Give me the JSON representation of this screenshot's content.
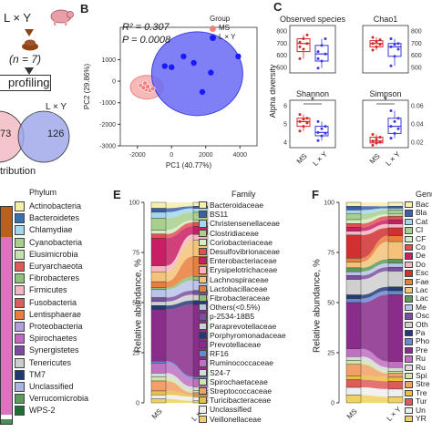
{
  "panelA": {
    "group_label": "L × Y",
    "n_label": "(n = 7)",
    "profiling_label": "profiling",
    "venn_left_value": "73",
    "venn_right_value": "126",
    "L_Y_label": "L × Y",
    "footer_label": "tribution",
    "pig_color": "#e8a0a8",
    "venn_color": "#9aa4e8"
  },
  "panelB": {
    "letter": "B",
    "r2_label": "R² = 0.307",
    "p_label": "P = 0.0008",
    "legend_title": "Group",
    "legend_items": [
      {
        "label": "MS",
        "color": "#f08080"
      },
      {
        "label": "L × Y",
        "color": "#1a1aff"
      }
    ]
  },
  "panelC": {
    "letter": "C",
    "ylabel": "Alpha diversity",
    "xcats": [
      "MS",
      "L × Y"
    ],
    "colors": {
      "MS": "#d62728",
      "LY": "#3b3bd8"
    },
    "subplots": [
      {
        "title": "Observed species",
        "yticks": [
          "800",
          "700",
          "600",
          "500"
        ],
        "sig": ""
      },
      {
        "title": "Chao1",
        "yticks": [
          "800",
          "700",
          "600",
          "500"
        ],
        "sig": ""
      },
      {
        "title": "Shannon",
        "yticks": [
          "6",
          "5",
          "4"
        ],
        "sig": "*"
      },
      {
        "title": "Simpson",
        "yticks": [
          "0.06",
          "0.04",
          "0.02"
        ],
        "sig": "*"
      }
    ]
  },
  "panelD": {
    "legend_title": "Phylum",
    "legend_items": [
      {
        "label": "Actinobacteria",
        "color": "#f5f0a8"
      },
      {
        "label": "Bacteroidetes",
        "color": "#3a6fb0"
      },
      {
        "label": "Chlamydiae",
        "color": "#a7d7ea"
      },
      {
        "label": "Cyanobacteria",
        "color": "#a8d08d"
      },
      {
        "label": "Elusimicrobia",
        "color": "#c6e0b4"
      },
      {
        "label": "Euryarchaeota",
        "color": "#e05a5a"
      },
      {
        "label": "Fibrobacteres",
        "color": "#8fbf7a"
      },
      {
        "label": "Firmicutes",
        "color": "#f4b6c2"
      },
      {
        "label": "Fusobacteria",
        "color": "#d95f5f"
      },
      {
        "label": "Lentisphaerae",
        "color": "#e97f3c"
      },
      {
        "label": "Proteobacteria",
        "color": "#b39ddb"
      },
      {
        "label": "Spirochaetes",
        "color": "#c266c2"
      },
      {
        "label": "Synergistetes",
        "color": "#7c4aa0"
      },
      {
        "label": "Tenericutes",
        "color": "#cccccc"
      },
      {
        "label": "TM7",
        "color": "#1e3a6e"
      },
      {
        "label": "Unclassified",
        "color": "#aab4e0"
      },
      {
        "label": "Verrucomicrobia",
        "color": "#5a9a5a"
      },
      {
        "label": "WPS-2",
        "color": "#1f6e3a"
      }
    ],
    "bar_left_stack": [
      {
        "name": "Firmicutes",
        "frac": 0.82,
        "color": "#e070c0"
      },
      {
        "name": "Bacteroidetes",
        "frac": 0.16,
        "color": "#b8601c"
      },
      {
        "name": "Others",
        "frac": 0.02,
        "color": "#4a8f5a"
      }
    ]
  },
  "panelE": {
    "letter": "E",
    "ylabel": "Relative abundance, %",
    "yticks": [
      "100",
      "75",
      "50",
      "25",
      "0"
    ],
    "xcats": [
      "MS",
      "L × Y"
    ],
    "legend_title": "Family",
    "legend_items": [
      {
        "label": "Bacteroidaceae",
        "color": "#f5efb0"
      },
      {
        "label": "BS11",
        "color": "#3a5fa8"
      },
      {
        "label": "Christensenellaceae",
        "color": "#a6d6ee"
      },
      {
        "label": "Clostridiaceae",
        "color": "#a8d08d"
      },
      {
        "label": "Coriobacteriaceae",
        "color": "#d4edc4"
      },
      {
        "label": "Desulfovibrionaceae",
        "color": "#e05050"
      },
      {
        "label": "Enterobacteriaceae",
        "color": "#c91e63"
      },
      {
        "label": "Erysipelotrichaceae",
        "color": "#f4b6c2"
      },
      {
        "label": "Lachnospiraceae",
        "color": "#f5c27a"
      },
      {
        "label": "Lactobacillaceae",
        "color": "#e97f3c"
      },
      {
        "label": "Fibrobacteraceae",
        "color": "#8fbf7a"
      },
      {
        "label": "Others(<0.5%)",
        "color": "#b8c4e8"
      },
      {
        "label": "p-2534-18B5",
        "color": "#7a4fa0"
      },
      {
        "label": "Paraprevotellaceae",
        "color": "#cfcfcf"
      },
      {
        "label": "Porphyromonadaceae",
        "color": "#243a78"
      },
      {
        "label": "Prevotellaceae",
        "color": "#8a2c8a"
      },
      {
        "label": "RF16",
        "color": "#6a88d0"
      },
      {
        "label": "Ruminococcaceae",
        "color": "#c070c0"
      },
      {
        "label": "S24-7",
        "color": "#d8d8d8"
      },
      {
        "label": "Spirochaetaceae",
        "color": "#cfe6a6"
      },
      {
        "label": "Streptococcaceae",
        "color": "#f2a066"
      },
      {
        "label": "Turicibacteraceae",
        "color": "#e8c040"
      },
      {
        "label": "Unclassified",
        "color": "#eeeeee"
      },
      {
        "label": "Veillonellaceae",
        "color": "#f0d060"
      }
    ]
  },
  "panelF": {
    "letter": "F",
    "ylabel": "Relative abundance, %",
    "yticks": [
      "100",
      "75",
      "50",
      "25",
      "0"
    ],
    "xcats": [
      "MS",
      "L × Y"
    ],
    "legend_title": "Genu",
    "legend_items": [
      {
        "label": "Bac",
        "color": "#f5efb0"
      },
      {
        "label": "Bla",
        "color": "#3a5fa8"
      },
      {
        "label": "Cat",
        "color": "#a6d6ee"
      },
      {
        "label": "Cl",
        "color": "#a8d08d"
      },
      {
        "label": "CF",
        "color": "#d4edc4"
      },
      {
        "label": "Co",
        "color": "#e05050"
      },
      {
        "label": "De",
        "color": "#c91e63"
      },
      {
        "label": "Do",
        "color": "#f4b6c2"
      },
      {
        "label": "Esc",
        "color": "#d03030"
      },
      {
        "label": "Fae",
        "color": "#e97f3c"
      },
      {
        "label": "Lac",
        "color": "#f5c27a"
      },
      {
        "label": "Lac",
        "color": "#5a9a5a"
      },
      {
        "label": "Me",
        "color": "#b8c4e8"
      },
      {
        "label": "Osc",
        "color": "#7a4fa0"
      },
      {
        "label": "Oth",
        "color": "#cfcfcf"
      },
      {
        "label": "Pa",
        "color": "#243a78"
      },
      {
        "label": "Pho",
        "color": "#6a88d0"
      },
      {
        "label": "Pre",
        "color": "#8a2c8a"
      },
      {
        "label": "Ru",
        "color": "#c070c0"
      },
      {
        "label": "Ru",
        "color": "#d8d8d8"
      },
      {
        "label": "Spi",
        "color": "#cfe6a6"
      },
      {
        "label": "Stre",
        "color": "#f2a066"
      },
      {
        "label": "Tre",
        "color": "#e8c040"
      },
      {
        "label": "Tur",
        "color": "#e05a5a"
      },
      {
        "label": "Un",
        "color": "#eeeeee"
      },
      {
        "label": "YR",
        "color": "#f0d060"
      }
    ]
  },
  "chart_data": [
    {
      "type": "scatter",
      "panel": "B",
      "xlabel": "PC1 (40.77%)",
      "ylabel": "PC2 (29.86%)",
      "xlim": [
        -3000,
        5000
      ],
      "ylim": [
        -3000,
        2500
      ],
      "xticks": [
        -2000,
        0,
        2000,
        4000
      ],
      "yticks": [
        1000,
        0,
        -1000,
        -2000,
        -3000
      ],
      "series": [
        {
          "name": "MS",
          "color": "#f08080",
          "points": [
            [
              -1800,
              -200
            ],
            [
              -1500,
              -380
            ],
            [
              -1250,
              -420
            ],
            [
              -1550,
              -100
            ],
            [
              -1400,
              -250
            ],
            [
              -1100,
              -350
            ],
            [
              -1650,
              -300
            ]
          ]
        },
        {
          "name": "L × Y",
          "color": "#1a1aff",
          "points": [
            [
              -400,
              700
            ],
            [
              0,
              650
            ],
            [
              1300,
              850
            ],
            [
              2300,
              400
            ],
            [
              3900,
              1150
            ],
            [
              700,
              1150
            ],
            [
              1800,
              -500
            ]
          ]
        }
      ]
    },
    {
      "type": "bar",
      "panel": "E",
      "stacked": true,
      "categories": [
        "MS",
        "L × Y"
      ],
      "ylim": [
        0,
        100
      ],
      "series": [
        {
          "name": "Bacteroidaceae",
          "values": [
            3,
            2
          ]
        },
        {
          "name": "BS11",
          "values": [
            2,
            1
          ]
        },
        {
          "name": "Christensenellaceae",
          "values": [
            3,
            2
          ]
        },
        {
          "name": "Clostridiaceae",
          "values": [
            6,
            4
          ]
        },
        {
          "name": "Coriobacteriaceae",
          "values": [
            2,
            1
          ]
        },
        {
          "name": "Desulfovibrionaceae",
          "values": [
            2,
            2
          ]
        },
        {
          "name": "Enterobacteriaceae",
          "values": [
            14,
            4
          ]
        },
        {
          "name": "Erysipelotrichaceae",
          "values": [
            3,
            3
          ]
        },
        {
          "name": "Lachnospiraceae",
          "values": [
            5,
            8
          ]
        },
        {
          "name": "Lactobacillaceae",
          "values": [
            3,
            10
          ]
        },
        {
          "name": "Fibrobacteraceae",
          "values": [
            1,
            2
          ]
        },
        {
          "name": "Others(<0.5%)",
          "values": [
            4,
            5
          ]
        },
        {
          "name": "p-2534-18B5",
          "values": [
            2,
            2
          ]
        },
        {
          "name": "Paraprevotellaceae",
          "values": [
            2,
            3
          ]
        },
        {
          "name": "Porphyromonadaceae",
          "values": [
            2,
            2
          ]
        },
        {
          "name": "Prevotellaceae",
          "values": [
            26,
            36
          ]
        },
        {
          "name": "RF16",
          "values": [
            1,
            1
          ]
        },
        {
          "name": "Ruminococcaceae",
          "values": [
            5,
            4
          ]
        },
        {
          "name": "S24-7",
          "values": [
            2,
            2
          ]
        },
        {
          "name": "Spirochaetaceae",
          "values": [
            2,
            1
          ]
        },
        {
          "name": "Streptococcaceae",
          "values": [
            5,
            1
          ]
        },
        {
          "name": "Turicibacteraceae",
          "values": [
            2,
            1
          ]
        },
        {
          "name": "Unclassified",
          "values": [
            2,
            2
          ]
        },
        {
          "name": "Veillonellaceae",
          "values": [
            2,
            1
          ]
        }
      ]
    },
    {
      "type": "bar",
      "panel": "F",
      "stacked": true,
      "categories": [
        "MS",
        "L × Y"
      ],
      "ylim": [
        0,
        100
      ],
      "series": [
        {
          "name": "Bac",
          "values": [
            2,
            2
          ]
        },
        {
          "name": "Bla",
          "values": [
            2,
            1
          ]
        },
        {
          "name": "Cat",
          "values": [
            2,
            1
          ]
        },
        {
          "name": "Cl",
          "values": [
            3,
            2
          ]
        },
        {
          "name": "CF",
          "values": [
            2,
            1
          ]
        },
        {
          "name": "Co",
          "values": [
            2,
            2
          ]
        },
        {
          "name": "De",
          "values": [
            2,
            2
          ]
        },
        {
          "name": "Do",
          "values": [
            2,
            2
          ]
        },
        {
          "name": "Esc",
          "values": [
            12,
            4
          ]
        },
        {
          "name": "Fae",
          "values": [
            2,
            3
          ]
        },
        {
          "name": "Lac",
          "values": [
            3,
            9
          ]
        },
        {
          "name": "Lac",
          "values": [
            2,
            2
          ]
        },
        {
          "name": "Me",
          "values": [
            2,
            2
          ]
        },
        {
          "name": "Osc",
          "values": [
            2,
            2
          ]
        },
        {
          "name": "Oth",
          "values": [
            8,
            8
          ]
        },
        {
          "name": "Pa",
          "values": [
            2,
            2
          ]
        },
        {
          "name": "Pho",
          "values": [
            2,
            2
          ]
        },
        {
          "name": "Pre",
          "values": [
            24,
            34
          ]
        },
        {
          "name": "Ru",
          "values": [
            4,
            3
          ]
        },
        {
          "name": "Ru",
          "values": [
            2,
            2
          ]
        },
        {
          "name": "Spi",
          "values": [
            2,
            1
          ]
        },
        {
          "name": "Stre",
          "values": [
            6,
            2
          ]
        },
        {
          "name": "Tre",
          "values": [
            2,
            2
          ]
        },
        {
          "name": "Tur",
          "values": [
            4,
            4
          ]
        },
        {
          "name": "Un",
          "values": [
            4,
            4
          ]
        },
        {
          "name": "YR",
          "values": [
            4,
            3
          ]
        }
      ]
    }
  ]
}
